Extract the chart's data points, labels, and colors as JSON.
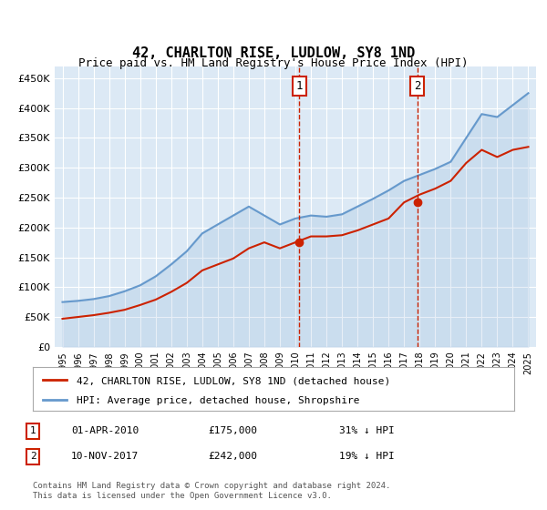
{
  "title": "42, CHARLTON RISE, LUDLOW, SY8 1ND",
  "subtitle": "Price paid vs. HM Land Registry's House Price Index (HPI)",
  "background_color": "#dce9f5",
  "plot_bg_color": "#dce9f5",
  "fig_bg_color": "#ffffff",
  "ylim": [
    0,
    470000
  ],
  "yticks": [
    0,
    50000,
    100000,
    150000,
    200000,
    250000,
    300000,
    350000,
    400000,
    450000
  ],
  "ytick_labels": [
    "£0",
    "£50K",
    "£100K",
    "£150K",
    "£200K",
    "£250K",
    "£300K",
    "£350K",
    "£400K",
    "£450K"
  ],
  "hpi_color": "#6699cc",
  "price_color": "#cc2200",
  "marker_color_1": "#cc2200",
  "marker_color_2": "#cc2200",
  "dashed_line_color": "#cc2200",
  "annotation_1": {
    "x_year": 2010.25,
    "y": 175000,
    "label": "1"
  },
  "annotation_2": {
    "x_year": 2017.85,
    "y": 242000,
    "label": "2"
  },
  "legend_price_label": "42, CHARLTON RISE, LUDLOW, SY8 1ND (detached house)",
  "legend_hpi_label": "HPI: Average price, detached house, Shropshire",
  "table_rows": [
    {
      "num": "1",
      "date": "01-APR-2010",
      "price": "£175,000",
      "hpi": "31% ↓ HPI"
    },
    {
      "num": "2",
      "date": "10-NOV-2017",
      "price": "£242,000",
      "hpi": "19% ↓ HPI"
    }
  ],
  "footer": "Contains HM Land Registry data © Crown copyright and database right 2024.\nThis data is licensed under the Open Government Licence v3.0.",
  "hpi_data": {
    "years": [
      1995,
      1996,
      1997,
      1998,
      1999,
      2000,
      2001,
      2002,
      2003,
      2004,
      2005,
      2006,
      2007,
      2008,
      2009,
      2010,
      2011,
      2012,
      2013,
      2014,
      2015,
      2016,
      2017,
      2018,
      2019,
      2020,
      2021,
      2022,
      2023,
      2024,
      2025
    ],
    "values": [
      75000,
      77000,
      80000,
      85000,
      93000,
      103000,
      118000,
      138000,
      160000,
      190000,
      205000,
      220000,
      235000,
      220000,
      205000,
      215000,
      220000,
      218000,
      222000,
      235000,
      248000,
      262000,
      278000,
      288000,
      298000,
      310000,
      350000,
      390000,
      385000,
      405000,
      425000
    ]
  },
  "price_data": {
    "years": [
      1995,
      1996,
      1997,
      1998,
      1999,
      2000,
      2001,
      2002,
      2003,
      2004,
      2005,
      2006,
      2007,
      2008,
      2009,
      2010,
      2011,
      2012,
      2013,
      2014,
      2015,
      2016,
      2017,
      2018,
      2019,
      2020,
      2021,
      2022,
      2023,
      2024,
      2025
    ],
    "values": [
      47000,
      50000,
      53000,
      57000,
      62000,
      70000,
      79000,
      92000,
      107000,
      128000,
      138000,
      148000,
      165000,
      175000,
      165000,
      175000,
      185000,
      185000,
      187000,
      195000,
      205000,
      215000,
      242000,
      255000,
      265000,
      278000,
      308000,
      330000,
      318000,
      330000,
      335000
    ]
  },
  "xlim_start": 1994.5,
  "xlim_end": 2025.5,
  "xtick_years": [
    1995,
    1996,
    1997,
    1998,
    1999,
    2000,
    2001,
    2002,
    2003,
    2004,
    2005,
    2006,
    2007,
    2008,
    2009,
    2010,
    2011,
    2012,
    2013,
    2014,
    2015,
    2016,
    2017,
    2018,
    2019,
    2020,
    2021,
    2022,
    2023,
    2024,
    2025
  ]
}
